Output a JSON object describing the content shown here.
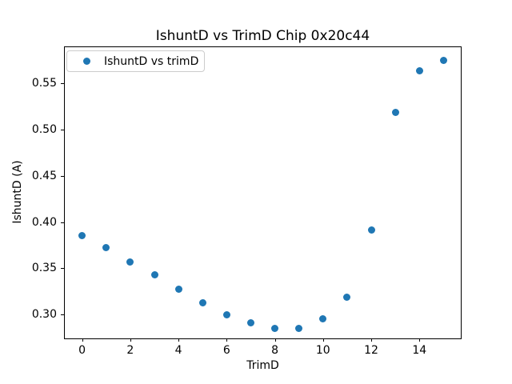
{
  "chart_data": {
    "type": "scatter",
    "title": "IshuntD vs TrimD Chip 0x20c44",
    "xlabel": "TrimD",
    "ylabel": "IshuntD (A)",
    "legend": {
      "label": "IshuntD vs trimD",
      "position": "upper left",
      "border_color": "#cccccc"
    },
    "series": [
      {
        "name": "IshuntD vs trimD",
        "marker": "circle",
        "color": "#1f77b4",
        "x": [
          0,
          1,
          2,
          3,
          4,
          5,
          6,
          7,
          8,
          9,
          10,
          11,
          12,
          13,
          14,
          15
        ],
        "y": [
          0.385,
          0.372,
          0.357,
          0.343,
          0.327,
          0.313,
          0.3,
          0.291,
          0.285,
          0.285,
          0.295,
          0.319,
          0.391,
          0.519,
          0.564,
          0.575
        ]
      }
    ],
    "xlim": [
      -0.75,
      15.75
    ],
    "ylim": [
      0.274,
      0.59
    ],
    "xticks": [
      0,
      2,
      4,
      6,
      8,
      10,
      12,
      14
    ],
    "xtick_labels": [
      "0",
      "2",
      "4",
      "6",
      "8",
      "10",
      "12",
      "14"
    ],
    "yticks": [
      0.3,
      0.35,
      0.4,
      0.45,
      0.5,
      0.55
    ],
    "ytick_labels": [
      "0.30",
      "0.35",
      "0.40",
      "0.45",
      "0.50",
      "0.55"
    ],
    "grid": false
  },
  "colors": {
    "marker": "#1f77b4",
    "text": "#000000",
    "spine": "#000000",
    "background": "#ffffff",
    "legend_border": "#cccccc"
  }
}
